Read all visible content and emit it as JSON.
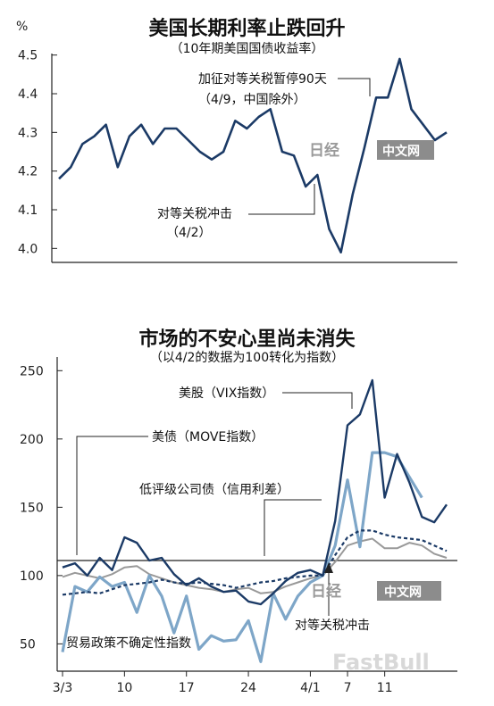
{
  "chart_data": [
    {
      "type": "line",
      "title": "美国长期利率止跌回升",
      "subtitle": "（10年期美国国债收益率）",
      "ylabel": "%",
      "ylim": [
        3.95,
        4.55
      ],
      "y_ticks": [
        "4.5",
        "4.4",
        "4.3",
        "4.2",
        "4.1",
        "4.0"
      ],
      "y_tick_values": [
        4.5,
        4.4,
        4.3,
        4.2,
        4.1,
        4.0
      ],
      "series": [
        {
          "values": [
            4.18,
            4.21,
            4.27,
            4.29,
            4.32,
            4.21,
            4.29,
            4.32,
            4.27,
            4.31,
            4.31,
            4.28,
            4.25,
            4.23,
            4.25,
            4.33,
            4.31,
            4.34,
            4.36,
            4.25,
            4.24,
            4.16,
            4.19,
            4.05,
            3.99,
            4.14,
            4.26,
            4.39,
            4.39,
            4.49,
            4.36,
            4.32,
            4.28,
            4.3
          ],
          "color": "#1b3a66"
        }
      ],
      "annotations": [
        {
          "text": "加征对等关税暂停90天",
          "text2": "（4/9，中国除外）"
        },
        {
          "text": "对等关税冲击",
          "text2": "（4/2）"
        }
      ]
    },
    {
      "type": "line",
      "title": "市场的不安心里尚未消失",
      "subtitle": "（以4/2的数据为100转化为指数）",
      "ylim": [
        30,
        260
      ],
      "y_ticks": [
        "250",
        "200",
        "150",
        "100",
        "50"
      ],
      "y_tick_values": [
        250,
        200,
        150,
        100,
        50
      ],
      "x_ticks": [
        "3/3",
        "10",
        "17",
        "24",
        "4/1",
        "7",
        "11"
      ],
      "x_tick_index": [
        0,
        5,
        10,
        15,
        20,
        23,
        26
      ],
      "series": [
        {
          "name": "美股（VIX指数）",
          "color": "#1b3a66",
          "style": "solid",
          "values": [
            106,
            109,
            100,
            113,
            104,
            128,
            124,
            111,
            113,
            101,
            93,
            98,
            92,
            88,
            89,
            81,
            79,
            87,
            96,
            102,
            104,
            100,
            140,
            210,
            218,
            243,
            157,
            189,
            168,
            143,
            139,
            152
          ]
        },
        {
          "name": "美债（MOVE指数）",
          "color": "#999999",
          "style": "solid",
          "values": [
            99,
            102,
            100,
            98,
            101,
            106,
            107,
            101,
            98,
            95,
            93,
            91,
            90,
            88,
            90,
            91,
            87,
            88,
            92,
            95,
            98,
            100,
            110,
            122,
            125,
            127,
            120,
            120,
            124,
            122,
            116,
            113
          ]
        },
        {
          "name": "低评级公司债（信用利差）",
          "color": "#1b3a66",
          "style": "dashed",
          "values": [
            86,
            87,
            88,
            87,
            90,
            93,
            94,
            95,
            97,
            95,
            94,
            95,
            94,
            93,
            91,
            93,
            95,
            96,
            98,
            99,
            100,
            100,
            115,
            128,
            133,
            133,
            130,
            128,
            127,
            126,
            122,
            118
          ]
        },
        {
          "name": "贸易政策不确定性指数",
          "color": "#7ea6c8",
          "style": "solid",
          "values": [
            44,
            92,
            88,
            99,
            92,
            95,
            73,
            100,
            85,
            58,
            85,
            46,
            56,
            52,
            53,
            67,
            37,
            87,
            68,
            85,
            95,
            100,
            122,
            170,
            121,
            190,
            190,
            187,
            172,
            157
          ]
        }
      ],
      "annotations": [
        {
          "text": "对等关税冲击"
        }
      ]
    }
  ],
  "watermark": {
    "logo": "日经",
    "text": "中文网"
  },
  "source_mark": "FastBull"
}
